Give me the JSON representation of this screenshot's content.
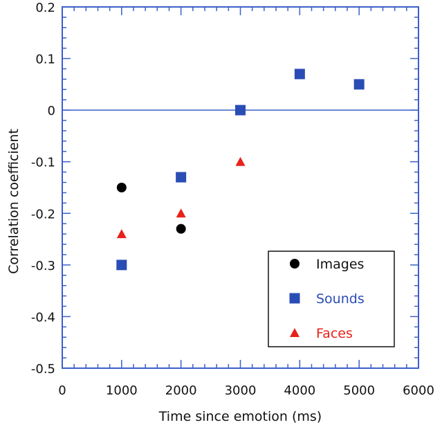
{
  "chart_data": {
    "type": "scatter",
    "title": "",
    "xlabel": "Time since emotion (ms)",
    "ylabel": "Correlation coefficient",
    "xlim": [
      0,
      6000
    ],
    "ylim": [
      -0.5,
      0.2
    ],
    "x_ticks": [
      0,
      1000,
      2000,
      3000,
      4000,
      5000,
      6000
    ],
    "x_tick_labels": [
      "0",
      "1000",
      "2000",
      "3000",
      "4000",
      "5000",
      "6000"
    ],
    "y_ticks": [
      0.2,
      0.1,
      0,
      -0.1,
      -0.2,
      -0.3,
      -0.4,
      -0.5
    ],
    "y_tick_labels": [
      "0.2",
      "0.1",
      "0",
      "-0.1",
      "-0.2",
      "-0.3",
      "-0.4",
      "-0.5"
    ],
    "zero_line": 0,
    "grid": false,
    "legend_position": "bottom-right",
    "series": [
      {
        "name": "Images",
        "marker": "circle",
        "color": "#000000",
        "points": [
          {
            "x": 1000,
            "y": -0.15
          },
          {
            "x": 2000,
            "y": -0.23
          }
        ]
      },
      {
        "name": "Sounds",
        "marker": "square",
        "color": "#2a4cb5",
        "points": [
          {
            "x": 1000,
            "y": -0.3
          },
          {
            "x": 2000,
            "y": -0.13
          },
          {
            "x": 3000,
            "y": 0.0
          },
          {
            "x": 4000,
            "y": 0.07
          },
          {
            "x": 5000,
            "y": 0.05
          }
        ]
      },
      {
        "name": "Faces",
        "marker": "triangle",
        "color": "#e8211a",
        "points": [
          {
            "x": 1000,
            "y": -0.24
          },
          {
            "x": 2000,
            "y": -0.2
          },
          {
            "x": 3000,
            "y": -0.1
          }
        ]
      }
    ],
    "colors": {
      "axis": "#3a5fc8",
      "zero_line": "#3a5fc8"
    }
  }
}
